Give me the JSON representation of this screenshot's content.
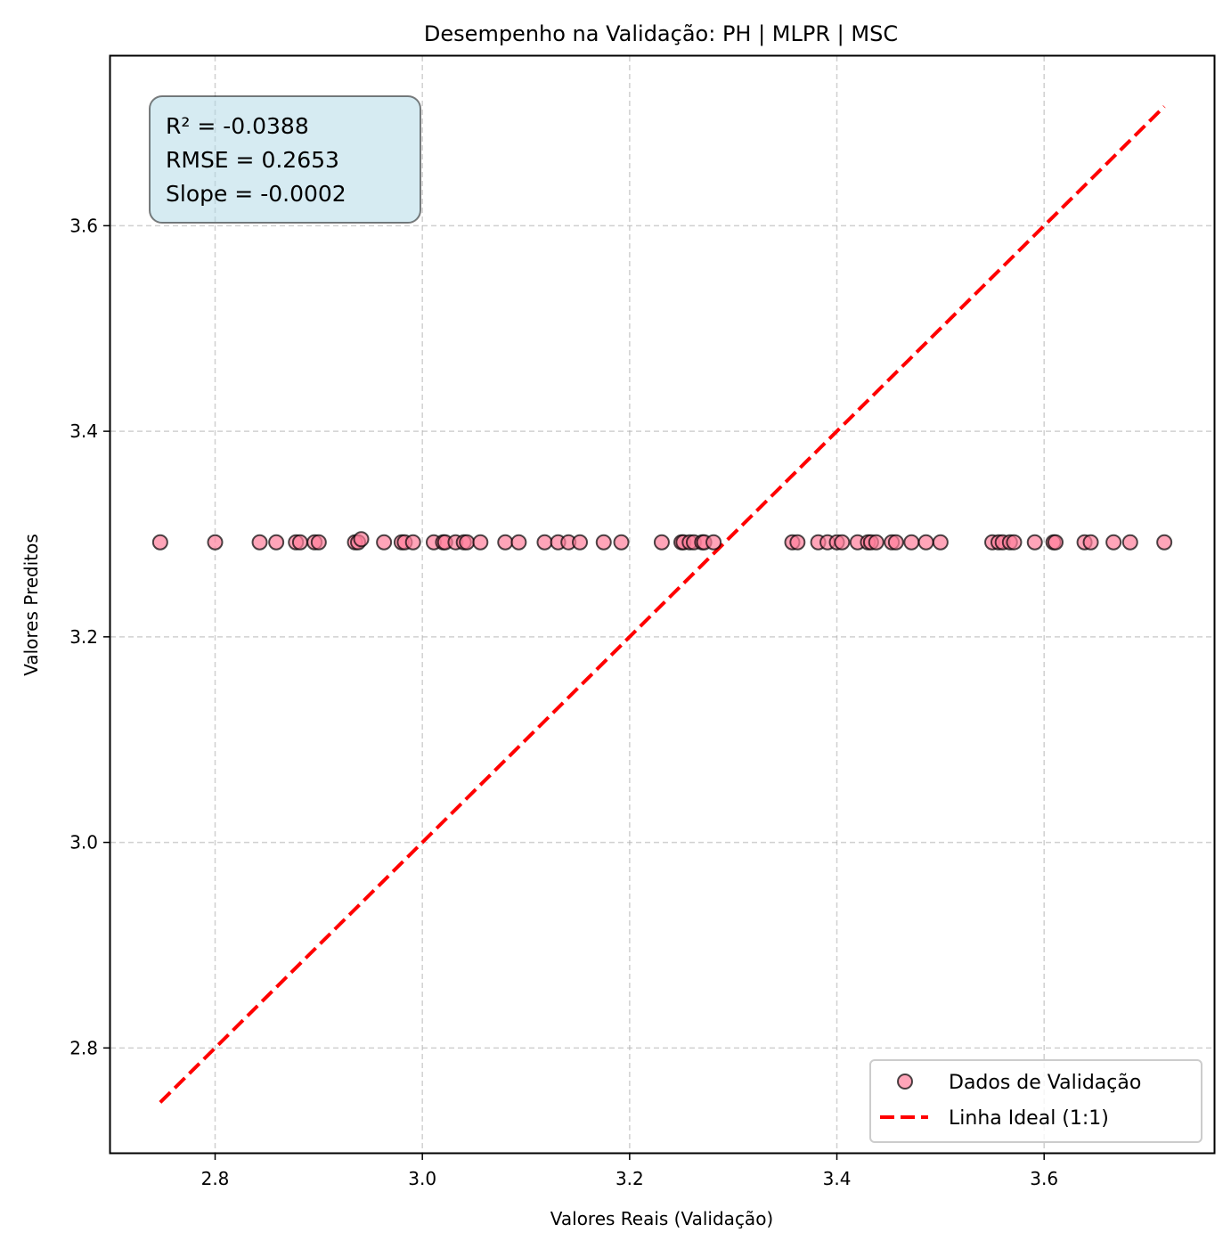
{
  "chart_data": {
    "type": "scatter",
    "title": "Desempenho na Validação: PH | MLPR | MSC",
    "xlabel": "Valores Reais (Validação)",
    "ylabel": "Valores Preditos",
    "xlim": [
      2.699,
      3.764
    ],
    "ylim": [
      2.698,
      3.765
    ],
    "xticks": [
      2.8,
      3.0,
      3.2,
      3.4,
      3.6
    ],
    "xtick_labels": [
      "2.8",
      "3.0",
      "3.2",
      "3.4",
      "3.6"
    ],
    "yticks": [
      2.8,
      3.0,
      3.2,
      3.4,
      3.6
    ],
    "ytick_labels": [
      "2.8",
      "3.0",
      "3.2",
      "3.4",
      "3.6"
    ],
    "grid": true,
    "legend_position": "lower-right",
    "annotation_lines": [
      "R² = -0.0388",
      "RMSE = 0.2653",
      "Slope = -0.0002"
    ],
    "series": [
      {
        "name": "Dados de Validação",
        "kind": "scatter",
        "color": "#ff7f9b",
        "edge_color": "#000000",
        "x": [
          2.747,
          2.8,
          2.843,
          2.859,
          2.878,
          2.882,
          2.896,
          2.9,
          2.935,
          2.938,
          2.941,
          2.963,
          2.98,
          2.983,
          2.991,
          3.011,
          3.02,
          3.022,
          3.032,
          3.04,
          3.043,
          3.056,
          3.08,
          3.093,
          3.118,
          3.131,
          3.141,
          3.152,
          3.175,
          3.192,
          3.231,
          3.25,
          3.252,
          3.258,
          3.262,
          3.27,
          3.272,
          3.281,
          3.357,
          3.362,
          3.382,
          3.391,
          3.4,
          3.405,
          3.42,
          3.43,
          3.433,
          3.438,
          3.453,
          3.457,
          3.472,
          3.486,
          3.5,
          3.55,
          3.556,
          3.56,
          3.567,
          3.571,
          3.591,
          3.609,
          3.611,
          3.639,
          3.645,
          3.667,
          3.683,
          3.716
        ],
        "y": [
          3.292,
          3.292,
          3.292,
          3.292,
          3.292,
          3.292,
          3.292,
          3.292,
          3.292,
          3.292,
          3.295,
          3.292,
          3.292,
          3.292,
          3.292,
          3.292,
          3.292,
          3.292,
          3.292,
          3.292,
          3.292,
          3.292,
          3.292,
          3.292,
          3.292,
          3.292,
          3.292,
          3.292,
          3.292,
          3.292,
          3.292,
          3.292,
          3.292,
          3.292,
          3.292,
          3.292,
          3.292,
          3.292,
          3.292,
          3.292,
          3.292,
          3.292,
          3.292,
          3.292,
          3.292,
          3.292,
          3.292,
          3.292,
          3.292,
          3.292,
          3.292,
          3.292,
          3.292,
          3.292,
          3.292,
          3.292,
          3.292,
          3.292,
          3.292,
          3.292,
          3.292,
          3.292,
          3.292,
          3.292,
          3.292,
          3.292
        ]
      },
      {
        "name": "Linha Ideal (1:1)",
        "kind": "line",
        "color": "#ff0000",
        "dashed": true,
        "x": [
          2.747,
          3.716
        ],
        "y": [
          2.747,
          3.716
        ]
      }
    ]
  }
}
